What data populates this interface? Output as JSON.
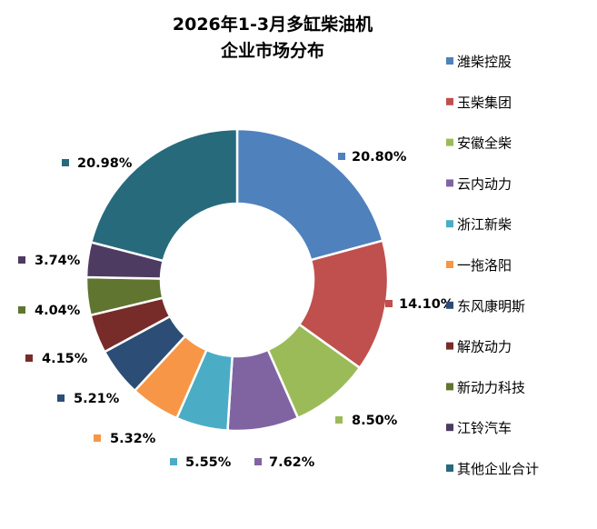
{
  "chart_data": {
    "type": "pie",
    "title": [
      "2026年1-3月多缸柴油机",
      "企业市场分布"
    ],
    "legend_position": "right",
    "slices": [
      {
        "name": "潍柴控股",
        "value": 20.8,
        "label": "20.80%",
        "color": "#4F81BD"
      },
      {
        "name": "玉柴集团",
        "value": 14.1,
        "label": "14.10%",
        "color": "#C0504D"
      },
      {
        "name": "安徽全柴",
        "value": 8.5,
        "label": "8.50%",
        "color": "#9BBB59"
      },
      {
        "name": "云内动力",
        "value": 7.62,
        "label": "7.62%",
        "color": "#8064A2"
      },
      {
        "name": "浙江新柴",
        "value": 5.55,
        "label": "5.55%",
        "color": "#4BACC6"
      },
      {
        "name": "一拖洛阳",
        "value": 5.32,
        "label": "5.32%",
        "color": "#F79646"
      },
      {
        "name": "东风康明斯",
        "value": 5.21,
        "label": "5.21%",
        "color": "#2C4D75"
      },
      {
        "name": "解放动力",
        "value": 4.15,
        "label": "4.15%",
        "color": "#772C2A"
      },
      {
        "name": "新动力科技",
        "value": 4.04,
        "label": "4.04%",
        "color": "#5F7530"
      },
      {
        "name": "江铃汽车",
        "value": 3.74,
        "label": "3.74%",
        "color": "#4D3B62"
      },
      {
        "name": "其他企业合计",
        "value": 20.98,
        "label": "20.98%",
        "color": "#276A7C"
      }
    ]
  }
}
